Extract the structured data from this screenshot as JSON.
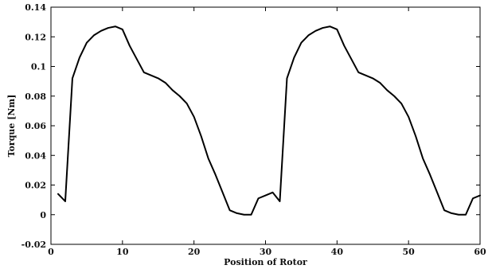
{
  "chart_data": {
    "type": "line",
    "title": "",
    "xlabel": "Position of Rotor",
    "ylabel": "Torque [Nm]",
    "xlim": [
      0,
      60
    ],
    "ylim": [
      -0.02,
      0.14
    ],
    "xticks": [
      0,
      10,
      20,
      30,
      40,
      50,
      60
    ],
    "yticks": [
      -0.02,
      0,
      0.02,
      0.04,
      0.06,
      0.08,
      0.1,
      0.12,
      0.14
    ],
    "xtick_labels": [
      "0",
      "10",
      "20",
      "30",
      "40",
      "50",
      "60"
    ],
    "ytick_labels": [
      "-0.02",
      "0",
      "0.02",
      "0.04",
      "0.06",
      "0.08",
      "0.1",
      "0.12",
      "0.14"
    ],
    "grid": false,
    "line_color": "#000000",
    "series": [
      {
        "x": [
          1,
          2,
          3,
          4,
          5,
          6,
          7,
          8,
          9,
          10,
          11,
          12,
          13,
          14,
          15,
          16,
          17,
          18,
          19,
          20,
          21,
          22,
          23,
          24,
          25,
          26,
          27,
          28,
          29,
          30,
          31,
          32,
          33,
          34,
          35,
          36,
          37,
          38,
          39,
          40,
          41,
          42,
          43,
          44,
          45,
          46,
          47,
          48,
          49,
          50,
          51,
          52,
          53,
          54,
          55,
          56,
          57,
          58,
          59,
          60
        ],
        "values": [
          0.014,
          0.009,
          0.092,
          0.106,
          0.116,
          0.121,
          0.124,
          0.126,
          0.127,
          0.125,
          0.114,
          0.105,
          0.096,
          0.094,
          0.092,
          0.089,
          0.084,
          0.08,
          0.075,
          0.066,
          0.053,
          0.038,
          0.027,
          0.015,
          0.003,
          0.001,
          0.0,
          0.0,
          0.011,
          0.013,
          0.015,
          0.009,
          0.092,
          0.106,
          0.116,
          0.121,
          0.124,
          0.126,
          0.127,
          0.125,
          0.114,
          0.105,
          0.096,
          0.094,
          0.092,
          0.089,
          0.084,
          0.08,
          0.075,
          0.066,
          0.053,
          0.038,
          0.027,
          0.015,
          0.003,
          0.001,
          0.0,
          0.0,
          0.011,
          0.013
        ]
      }
    ]
  }
}
